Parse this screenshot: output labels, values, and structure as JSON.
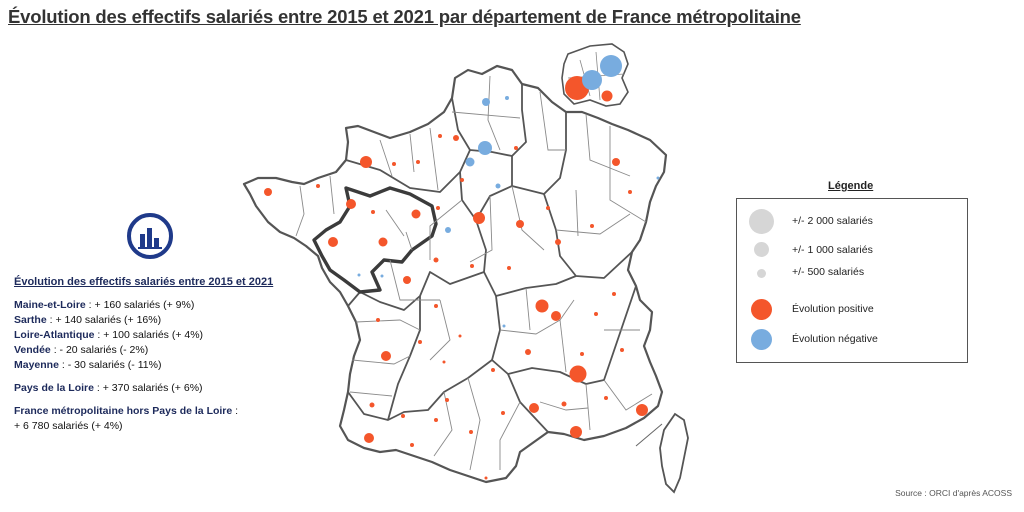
{
  "title": "Évolution des effectifs salariés entre 2015 et 2021 par département de France métropolitaine",
  "panel": {
    "title": "Évolution des effectifs salariés entre 2015 et 2021",
    "rows": [
      {
        "name": "Maine-et-Loire",
        "value": " : + 160 salariés (+ 9%)"
      },
      {
        "name": "Sarthe",
        "value": " : + 140 salariés (+ 16%)"
      },
      {
        "name": "Loire-Atlantique",
        "value": " : + 100 salariés (+ 4%)"
      },
      {
        "name": "Vendée",
        "value": " : - 20 salariés (- 2%)"
      },
      {
        "name": "Mayenne",
        "value": " : - 30 salariés (- 11%)"
      }
    ],
    "region": {
      "name": "Pays de la Loire",
      "value": " : + 370 salariés (+ 6%)"
    },
    "rest": {
      "name": "France métropolitaine hors Pays de la Loire",
      "value": " :",
      "line2": "+ 6 780 salariés (+ 4%)"
    }
  },
  "legend": {
    "title": "Légende",
    "size_items": [
      "+/- 2 000 salariés",
      "+/- 1 000 salariés",
      "+/- 500 salariés"
    ],
    "color_items": [
      "Évolution positive",
      "Évolution négative"
    ],
    "colors": {
      "positive": "#f4562b",
      "negative": "#78acdf",
      "size": "#d6d6d6"
    }
  },
  "source": "Source : ORCI d'après ACOSS"
}
